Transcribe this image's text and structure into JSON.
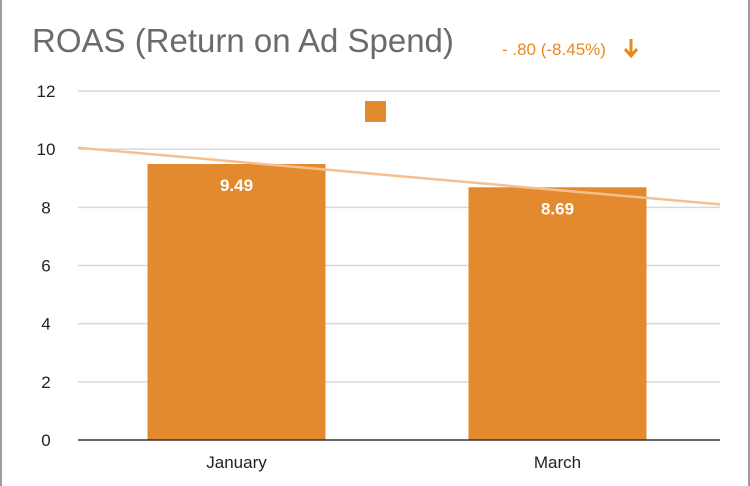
{
  "chart_data": {
    "type": "bar",
    "title": "ROAS (Return on Ad Spend)",
    "annotation": "- .80 (-8.45%)",
    "categories": [
      "January",
      "March"
    ],
    "series": [
      {
        "values": [
          9.49,
          8.69
        ]
      }
    ],
    "data_labels": [
      "9.49",
      "8.69"
    ],
    "trendline": {
      "from": 10.05,
      "to": 8.1
    },
    "ylim": [
      0,
      12
    ],
    "yticks": [
      0,
      2,
      4,
      6,
      8,
      10,
      12
    ],
    "xlabel": "",
    "ylabel": "",
    "grid": true,
    "legend": "top-center"
  },
  "colors": {
    "bar": "#e38a2e",
    "trendline": "#f5c08f",
    "title": "#6b6b6b",
    "annotation": "#e8891f",
    "gridline": "#d9d9d9",
    "axis": "#333333"
  },
  "icons": {
    "change_direction": "arrow-down-icon"
  }
}
